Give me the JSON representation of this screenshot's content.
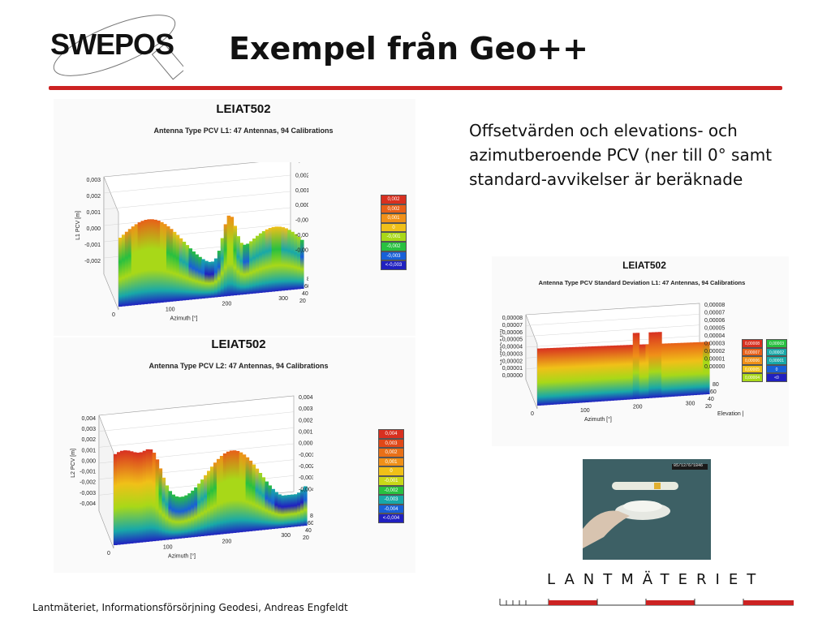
{
  "header": {
    "logo_text": "SWEPOS",
    "title": "Exempel från Geo++"
  },
  "description": "Offsetvärden och elevations- och azimutberoende PCV (ner till 0° samt standard-avvikelser är beräknade",
  "plots": {
    "l1": {
      "title": "LEIAT502",
      "subtitle": "Antenna Type PCV L1: 47 Antennas, 94 Calibrations",
      "left_ticks": [
        "0,003",
        "0,002",
        "0,001",
        "0,000",
        "-0,001",
        "-0,002"
      ],
      "right_ticks": [
        "0,003",
        "0,002",
        "0,001",
        "0,000",
        "-0,001",
        "-0,002",
        "-0,002"
      ],
      "ylabel": "L1 PCV [m]",
      "azimuth_ticks": [
        "0",
        "100",
        "200",
        "300"
      ],
      "elevation_ticks": [
        "80",
        "60",
        "40",
        "20"
      ],
      "xlabel": "Azimuth [°]",
      "elabel": "Elevation [°]",
      "legend": [
        "0,002",
        "0,002",
        "0,001",
        "0",
        "-0,001",
        "-0,002",
        "-0,003",
        "<-0,003"
      ]
    },
    "l2": {
      "title": "LEIAT502",
      "subtitle": "Antenna Type PCV L2: 47 Antennas, 94 Calibrations",
      "left_ticks": [
        "0,004",
        "0,003",
        "0,002",
        "0,001",
        "0,000",
        "-0,001",
        "-0,002",
        "-0,003",
        "-0,004"
      ],
      "right_ticks": [
        "0,004",
        "0,003",
        "0,002",
        "0,001",
        "0,000",
        "-0,001",
        "-0,002",
        "-0,003",
        "-0,004"
      ],
      "ylabel": "L2 PCV [m]",
      "azimuth_ticks": [
        "0",
        "100",
        "200",
        "300"
      ],
      "elevation_ticks": [
        "80",
        "60",
        "40",
        "20"
      ],
      "xlabel": "Azimuth [°]",
      "elabel": "Elevation [°]",
      "legend": [
        "0,004",
        "0,003",
        "0,002",
        "0,001",
        "0",
        "-0,001",
        "-0,002",
        "-0,003",
        "-0,004",
        "<-0,004"
      ]
    },
    "sd": {
      "title": "LEIAT502",
      "subtitle": "Antenna Type PCV Standard Deviation L1: 47 Antennas, 94 Calibrations",
      "left_ticks": [
        "0,00008",
        "0,00007",
        "0,00006",
        "0,00005",
        "0,00004",
        "0,00003",
        "0,00002",
        "0,00001",
        "0,00000"
      ],
      "right_ticks": [
        "0,00008",
        "0,00007",
        "0,00006",
        "0,00005",
        "0,00004",
        "0,00003",
        "0,00002",
        "0,00001",
        "0,00000"
      ],
      "ylabel": "L1 StdDev [m]",
      "azimuth_ticks": [
        "0",
        "100",
        "200",
        "300"
      ],
      "elevation_ticks": [
        "80",
        "60",
        "40",
        "20"
      ],
      "xlabel": "Azimuth [°]",
      "elabel": "Elevation [°]",
      "legend_a": [
        "0,00008",
        "0,00007",
        "0,00006",
        "0,00005",
        "0,00004"
      ],
      "legend_b": [
        "0,00003",
        "0,00002",
        "0,00001",
        "0",
        "<0"
      ]
    }
  },
  "photo_timestamp": "05/12/6/1846",
  "footer": "Lantmäteriet, Informationsförsörjning Geodesi, Andreas Engfeldt",
  "brand": "LANTMÄTERIET",
  "colors": {
    "accent_red": "#cc2222",
    "legend_scale": [
      "#d83020",
      "#e86018",
      "#f09018",
      "#f0c018",
      "#a8d818",
      "#28c040",
      "#18a8a8",
      "#1860d8",
      "#2020c0"
    ]
  }
}
